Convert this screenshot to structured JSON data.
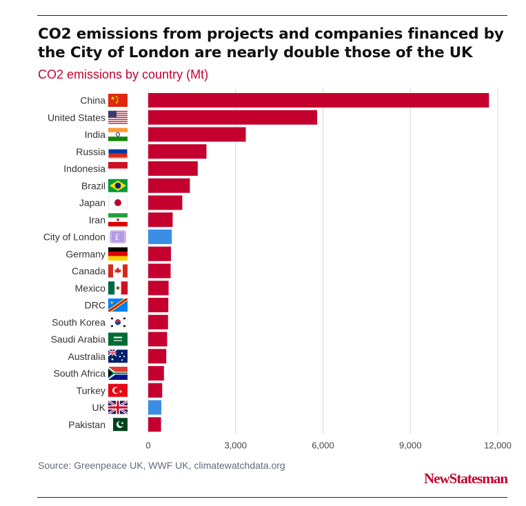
{
  "header": {
    "title": "CO2 emissions from projects and companies financed by the City of London are nearly double those of the UK",
    "subtitle": "CO2 emissions by country (Mt)"
  },
  "footer": {
    "source": "Source: Greenpeace UK, WWF UK, climatewatchdata.org",
    "brand": "NewStatesman"
  },
  "colors": {
    "default_bar": "#c4002f",
    "highlight_bar": "#3b8ee6",
    "accent": "#c4002f"
  },
  "chart_data": {
    "type": "bar",
    "orientation": "horizontal",
    "title": "CO2 emissions by country (Mt)",
    "xlabel": "",
    "ylabel": "",
    "xlim": [
      0,
      12000
    ],
    "xticks": [
      0,
      3000,
      6000,
      9000,
      12000
    ],
    "xtick_labels": [
      "0",
      "3,000",
      "6,000",
      "9,000",
      "12,000"
    ],
    "grid": true,
    "categories": [
      "China",
      "United States",
      "India",
      "Russia",
      "Indonesia",
      "Brazil",
      "Japan",
      "Iran",
      "City of London",
      "Germany",
      "Canada",
      "Mexico",
      "DRC",
      "South Korea",
      "Saudi Arabia",
      "Australia",
      "South Africa",
      "Turkey",
      "UK",
      "Pakistan"
    ],
    "values": [
      11700,
      5800,
      3350,
      2000,
      1700,
      1430,
      1170,
      840,
      810,
      780,
      770,
      700,
      690,
      680,
      650,
      620,
      540,
      480,
      450,
      440
    ],
    "highlight": [
      "City of London",
      "UK"
    ],
    "flag_icons": [
      "flag-china-icon",
      "flag-usa-icon",
      "flag-india-icon",
      "flag-russia-icon",
      "flag-indonesia-icon",
      "flag-brazil-icon",
      "flag-japan-icon",
      "flag-iran-icon",
      "pound-coin-icon",
      "flag-germany-icon",
      "flag-canada-icon",
      "flag-mexico-icon",
      "flag-drc-icon",
      "flag-south-korea-icon",
      "flag-saudi-arabia-icon",
      "flag-australia-icon",
      "flag-south-africa-icon",
      "flag-turkey-icon",
      "flag-uk-icon",
      "flag-pakistan-icon"
    ]
  }
}
